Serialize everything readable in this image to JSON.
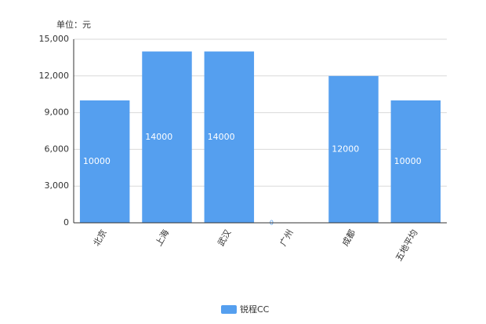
{
  "chart_data": {
    "type": "bar",
    "unit_label": "单位：元",
    "categories": [
      "北京",
      "上海",
      "武汉",
      "广州",
      "成都",
      "五地平均"
    ],
    "series": [
      {
        "name": "锐程CC",
        "color": "#559fef",
        "values": [
          10000,
          14000,
          14000,
          0,
          12000,
          10000
        ]
      }
    ],
    "ylim": [
      0,
      15000
    ],
    "yticks": [
      0,
      {
        "value": 3000,
        "label": "3,000"
      },
      {
        "value": 6000,
        "label": "6,000"
      },
      {
        "value": 9000,
        "label": "9,000"
      },
      {
        "value": 12000,
        "label": "12,000"
      },
      {
        "value": 15000,
        "label": "15,000"
      }
    ],
    "grid": true,
    "data_labels": true,
    "legend": "bottom"
  }
}
